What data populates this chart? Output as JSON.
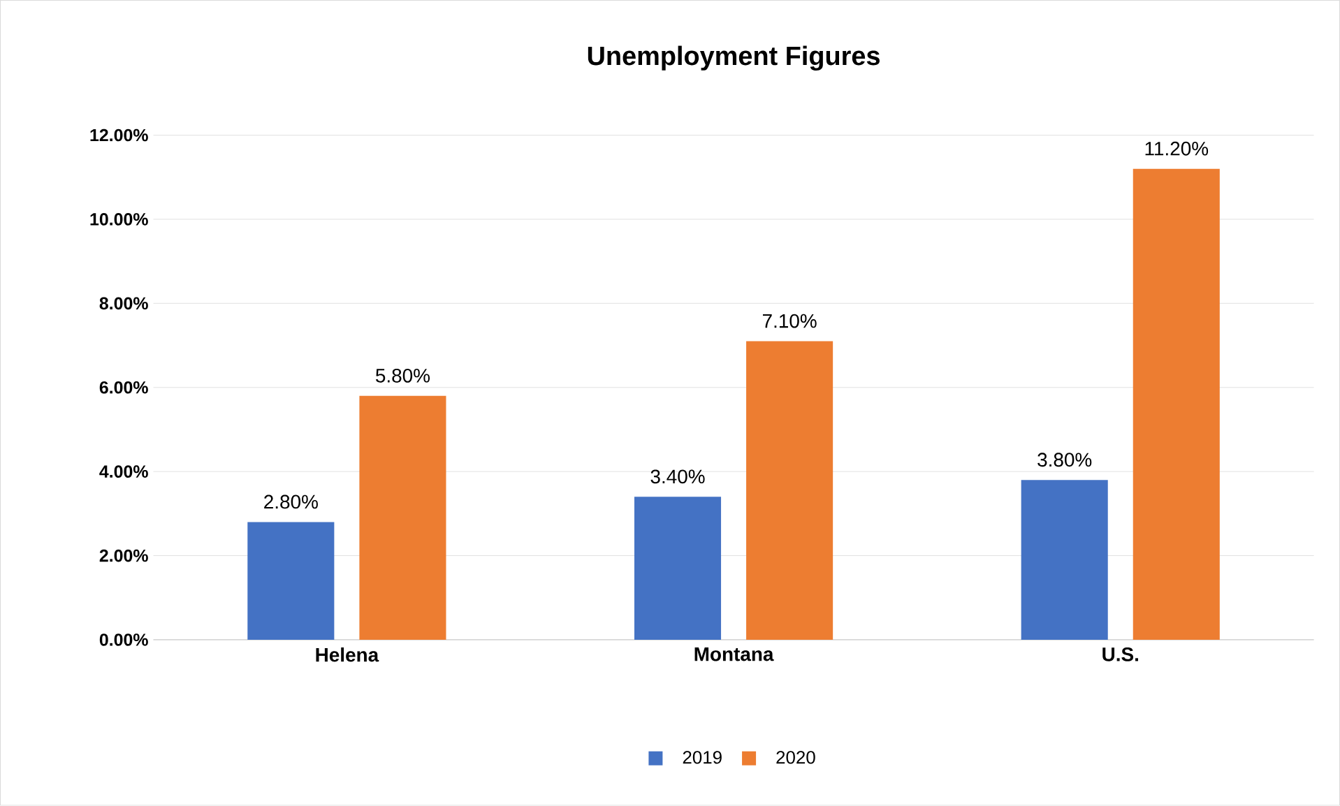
{
  "chart_data": {
    "type": "bar",
    "title": "Unemployment Figures",
    "categories": [
      "Helena",
      "Montana",
      "U.S."
    ],
    "series": [
      {
        "name": "2019",
        "color": "#4472c4",
        "values": [
          2.8,
          3.4,
          3.8
        ],
        "value_labels": [
          "2.80%",
          "3.40%",
          "3.80%"
        ]
      },
      {
        "name": "2020",
        "color": "#ed7d31",
        "values": [
          5.8,
          7.1,
          11.2
        ],
        "value_labels": [
          "5.80%",
          "7.10%",
          "11.20%"
        ]
      }
    ],
    "ylim": [
      0,
      12
    ],
    "yticks": [
      {
        "value": 0,
        "label": "0.00%"
      },
      {
        "value": 2,
        "label": "2.00%"
      },
      {
        "value": 4,
        "label": "4.00%"
      },
      {
        "value": 6,
        "label": "6.00%"
      },
      {
        "value": 8,
        "label": "8.00%"
      },
      {
        "value": 10,
        "label": "10.00%"
      },
      {
        "value": 12,
        "label": "12.00%"
      }
    ],
    "grid": "y",
    "legend": "bottom"
  }
}
